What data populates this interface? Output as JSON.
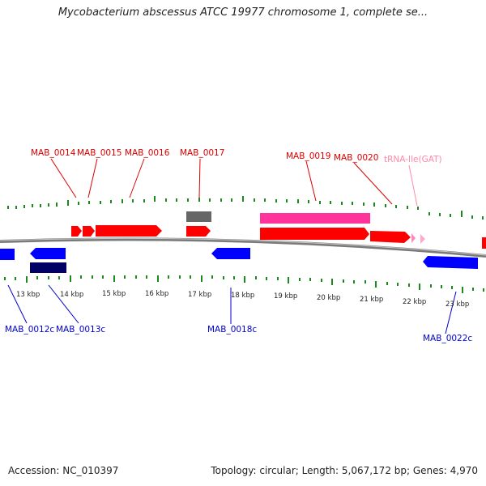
{
  "title": "Mycobacterium abscessus ATCC 19977 chromosome 1, complete se...",
  "footer": {
    "accession": "Accession: NC_010397",
    "info": "Topology: circular; Length: 5,067,172 bp; Genes: 4,970"
  },
  "colors": {
    "background": "#ffffff",
    "forward_gene": "#ff0000",
    "reverse_gene": "#0000ff",
    "rrna_like": "#ff3399",
    "trna": "#ffaacc",
    "pseudo_gray": "#666666",
    "dark_blue": "#000066",
    "ticks": "#1a8a1a",
    "backbone": "#888888",
    "label_forward": "#dd0000",
    "label_reverse": "#0000cc",
    "label_trna": "#ff88aa"
  },
  "scale_labels": [
    "13 kbp",
    "14 kbp",
    "15 kbp",
    "16 kbp",
    "17 kbp",
    "18 kbp",
    "19 kbp",
    "20 kbp",
    "21 kbp",
    "22 kbp",
    "23 kbp"
  ],
  "gene_labels_top": [
    {
      "name": "MAB_0014",
      "kind": "forward"
    },
    {
      "name": "MAB_0015",
      "kind": "forward"
    },
    {
      "name": "MAB_0016",
      "kind": "forward"
    },
    {
      "name": "MAB_0017",
      "kind": "forward"
    },
    {
      "name": "MAB_0019",
      "kind": "forward"
    },
    {
      "name": "MAB_0020",
      "kind": "forward"
    },
    {
      "name": "tRNA-Ile(GAT)",
      "kind": "trna"
    }
  ],
  "gene_labels_bottom": [
    {
      "name": "MAB_0012c",
      "kind": "reverse"
    },
    {
      "name": "MAB_0013c",
      "kind": "reverse"
    },
    {
      "name": "MAB_0018c",
      "kind": "reverse"
    },
    {
      "name": "MAB_0022c",
      "kind": "reverse"
    }
  ]
}
